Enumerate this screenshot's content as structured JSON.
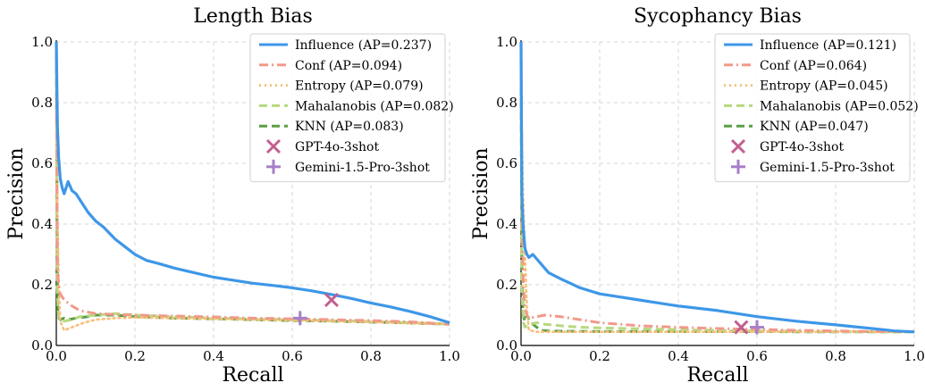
{
  "chart_data": [
    {
      "type": "line",
      "title": "Length Bias",
      "xlabel": "Recall",
      "ylabel": "Precision",
      "xlim": [
        0,
        1
      ],
      "ylim": [
        0,
        1
      ],
      "xticks": [
        "0.0",
        "0.2",
        "0.4",
        "0.6",
        "0.8",
        "1.0"
      ],
      "yticks": [
        "0.0",
        "0.2",
        "0.4",
        "0.6",
        "0.8",
        "1.0"
      ],
      "grid": true,
      "legend_position": "top-right",
      "series": [
        {
          "name": "Influence (AP=0.237)",
          "color": "#3d97e8",
          "style": "solid",
          "x": [
            0,
            0.003,
            0.006,
            0.01,
            0.015,
            0.02,
            0.03,
            0.04,
            0.05,
            0.06,
            0.08,
            0.1,
            0.12,
            0.15,
            0.18,
            0.2,
            0.23,
            0.26,
            0.3,
            0.35,
            0.4,
            0.45,
            0.5,
            0.55,
            0.6,
            0.65,
            0.7,
            0.75,
            0.8,
            0.85,
            0.9,
            0.95,
            1.0
          ],
          "y": [
            1.0,
            0.72,
            0.62,
            0.55,
            0.52,
            0.5,
            0.54,
            0.51,
            0.5,
            0.48,
            0.44,
            0.41,
            0.39,
            0.35,
            0.32,
            0.3,
            0.28,
            0.27,
            0.255,
            0.24,
            0.225,
            0.215,
            0.205,
            0.198,
            0.19,
            0.18,
            0.168,
            0.155,
            0.14,
            0.127,
            0.112,
            0.095,
            0.075
          ]
        },
        {
          "name": "Conf (AP=0.094)",
          "color": "#f2998a",
          "style": "dashdot",
          "x": [
            0,
            0.003,
            0.006,
            0.01,
            0.02,
            0.04,
            0.06,
            0.1,
            0.2,
            0.3,
            0.4,
            0.5,
            0.6,
            0.7,
            0.8,
            0.9,
            1.0
          ],
          "y": [
            1.0,
            0.25,
            0.2,
            0.17,
            0.15,
            0.13,
            0.115,
            0.105,
            0.1,
            0.097,
            0.094,
            0.09,
            0.088,
            0.085,
            0.082,
            0.078,
            0.07
          ]
        },
        {
          "name": "Entropy (AP=0.079)",
          "color": "#f7c07a",
          "style": "dotted",
          "x": [
            0,
            0.002,
            0.004,
            0.006,
            0.01,
            0.02,
            0.04,
            0.07,
            0.1,
            0.15,
            0.2,
            0.3,
            0.4,
            0.5,
            0.6,
            0.7,
            0.8,
            0.9,
            1.0
          ],
          "y": [
            0.78,
            0.5,
            0.35,
            0.22,
            0.08,
            0.05,
            0.06,
            0.075,
            0.085,
            0.09,
            0.092,
            0.09,
            0.088,
            0.085,
            0.083,
            0.08,
            0.077,
            0.073,
            0.07
          ]
        },
        {
          "name": "Mahalanobis (AP=0.082)",
          "color": "#b6d97e",
          "style": "dashed",
          "x": [
            0,
            0.002,
            0.005,
            0.01,
            0.02,
            0.04,
            0.06,
            0.1,
            0.15,
            0.2,
            0.3,
            0.4,
            0.5,
            0.6,
            0.7,
            0.8,
            0.9,
            1.0
          ],
          "y": [
            0.98,
            0.2,
            0.1,
            0.085,
            0.08,
            0.085,
            0.095,
            0.1,
            0.105,
            0.1,
            0.095,
            0.09,
            0.088,
            0.085,
            0.082,
            0.079,
            0.075,
            0.07
          ]
        },
        {
          "name": "KNN (AP=0.083)",
          "color": "#5a9e43",
          "style": "dashed",
          "x": [
            0,
            0.002,
            0.004,
            0.007,
            0.01,
            0.02,
            0.03,
            0.05,
            0.08,
            0.1,
            0.15,
            0.2,
            0.3,
            0.4,
            0.5,
            0.6,
            0.7,
            0.8,
            0.9,
            1.0
          ],
          "y": [
            1.0,
            0.4,
            0.1,
            0.09,
            0.085,
            0.09,
            0.085,
            0.09,
            0.095,
            0.1,
            0.1,
            0.095,
            0.09,
            0.088,
            0.085,
            0.082,
            0.08,
            0.077,
            0.074,
            0.07
          ]
        }
      ],
      "points": [
        {
          "name": "GPT-4o-3shot",
          "marker": "x",
          "color": "#c45e8e",
          "x": 0.7,
          "y": 0.15
        },
        {
          "name": "Gemini-1.5-Pro-3shot",
          "marker": "+",
          "color": "#a67fc8",
          "x": 0.62,
          "y": 0.09
        }
      ]
    },
    {
      "type": "line",
      "title": "Sycophancy Bias",
      "xlabel": "Recall",
      "ylabel": "Precision",
      "xlim": [
        0,
        1
      ],
      "ylim": [
        0,
        1
      ],
      "xticks": [
        "0.0",
        "0.2",
        "0.4",
        "0.6",
        "0.8",
        "1.0"
      ],
      "yticks": [
        "0.0",
        "0.2",
        "0.4",
        "0.6",
        "0.8",
        "1.0"
      ],
      "grid": true,
      "legend_position": "top-right",
      "series": [
        {
          "name": "Influence (AP=0.121)",
          "color": "#3d97e8",
          "style": "solid",
          "x": [
            0,
            0.002,
            0.005,
            0.008,
            0.01,
            0.015,
            0.02,
            0.03,
            0.05,
            0.07,
            0.1,
            0.15,
            0.2,
            0.25,
            0.3,
            0.35,
            0.4,
            0.5,
            0.6,
            0.7,
            0.8,
            0.9,
            0.95,
            1.0
          ],
          "y": [
            1.0,
            0.5,
            0.4,
            0.35,
            0.32,
            0.3,
            0.29,
            0.3,
            0.27,
            0.24,
            0.22,
            0.19,
            0.17,
            0.16,
            0.15,
            0.14,
            0.13,
            0.115,
            0.095,
            0.08,
            0.068,
            0.055,
            0.048,
            0.045
          ]
        },
        {
          "name": "Conf (AP=0.064)",
          "color": "#f2998a",
          "style": "dashdot",
          "x": [
            0,
            0.003,
            0.006,
            0.01,
            0.015,
            0.02,
            0.04,
            0.06,
            0.1,
            0.15,
            0.2,
            0.3,
            0.4,
            0.5,
            0.6,
            0.7,
            0.8,
            0.9,
            1.0
          ],
          "y": [
            1.0,
            0.4,
            0.2,
            0.12,
            0.1,
            0.09,
            0.095,
            0.1,
            0.095,
            0.085,
            0.075,
            0.065,
            0.06,
            0.056,
            0.053,
            0.05,
            0.048,
            0.046,
            0.045
          ]
        },
        {
          "name": "Entropy (AP=0.045)",
          "color": "#f7c07a",
          "style": "dotted",
          "x": [
            0,
            0.002,
            0.005,
            0.01,
            0.015,
            0.02,
            0.04,
            0.1,
            0.2,
            0.3,
            0.4,
            0.5,
            0.6,
            0.7,
            0.8,
            0.9,
            1.0
          ],
          "y": [
            0.8,
            0.7,
            0.5,
            0.3,
            0.12,
            0.05,
            0.045,
            0.045,
            0.045,
            0.045,
            0.045,
            0.045,
            0.045,
            0.045,
            0.045,
            0.045,
            0.045
          ]
        },
        {
          "name": "Mahalanobis (AP=0.052)",
          "color": "#b6d97e",
          "style": "dashed",
          "x": [
            0,
            0.002,
            0.005,
            0.01,
            0.02,
            0.04,
            0.06,
            0.1,
            0.15,
            0.2,
            0.3,
            0.4,
            0.5,
            0.6,
            0.7,
            0.8,
            0.9,
            1.0
          ],
          "y": [
            0.9,
            0.2,
            0.08,
            0.06,
            0.07,
            0.075,
            0.07,
            0.065,
            0.06,
            0.058,
            0.055,
            0.052,
            0.05,
            0.048,
            0.047,
            0.046,
            0.045,
            0.045
          ]
        },
        {
          "name": "KNN (AP=0.047)",
          "color": "#5a9e43",
          "style": "dashed",
          "x": [
            0,
            0.002,
            0.005,
            0.01,
            0.015,
            0.02,
            0.03,
            0.05,
            0.07,
            0.1,
            0.2,
            0.3,
            0.4,
            0.5,
            0.6,
            0.7,
            0.8,
            0.9,
            1.0
          ],
          "y": [
            0.85,
            0.3,
            0.1,
            0.08,
            0.1,
            0.085,
            0.07,
            0.05,
            0.048,
            0.047,
            0.046,
            0.046,
            0.046,
            0.046,
            0.046,
            0.045,
            0.045,
            0.045,
            0.045
          ]
        }
      ],
      "points": [
        {
          "name": "GPT-4o-3shot",
          "marker": "x",
          "color": "#c45e8e",
          "x": 0.56,
          "y": 0.06
        },
        {
          "name": "Gemini-1.5-Pro-3shot",
          "marker": "+",
          "color": "#a67fc8",
          "x": 0.6,
          "y": 0.06
        }
      ]
    }
  ]
}
